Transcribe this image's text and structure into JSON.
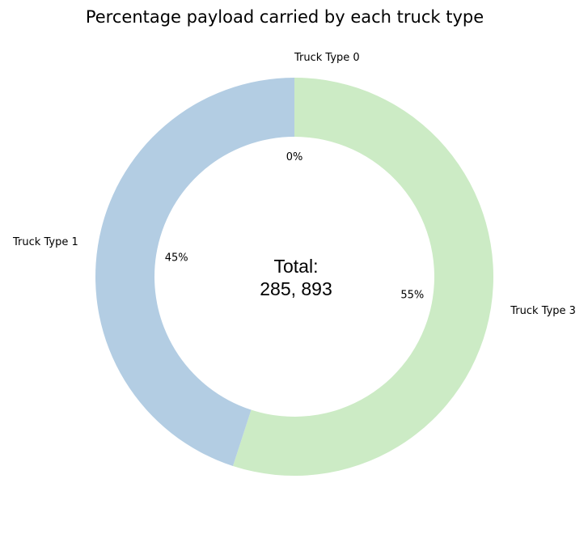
{
  "chart_data": {
    "type": "pie",
    "title": "Percentage payload carried by each truck type",
    "center_label": {
      "line1": "Total:",
      "line2": "285, 893"
    },
    "slices": [
      {
        "label": "Truck Type 0",
        "value": 0,
        "percent_label": "0%",
        "color": "#ccebc5"
      },
      {
        "label": "Truck Type 3",
        "value": 55,
        "percent_label": "55%",
        "color": "#ccebc5"
      },
      {
        "label": "Truck Type 1",
        "value": 45,
        "percent_label": "45%",
        "color": "#b3cde3"
      }
    ],
    "start_angle_deg": 90,
    "direction": "clockwise",
    "donut": true,
    "legend": "none"
  }
}
